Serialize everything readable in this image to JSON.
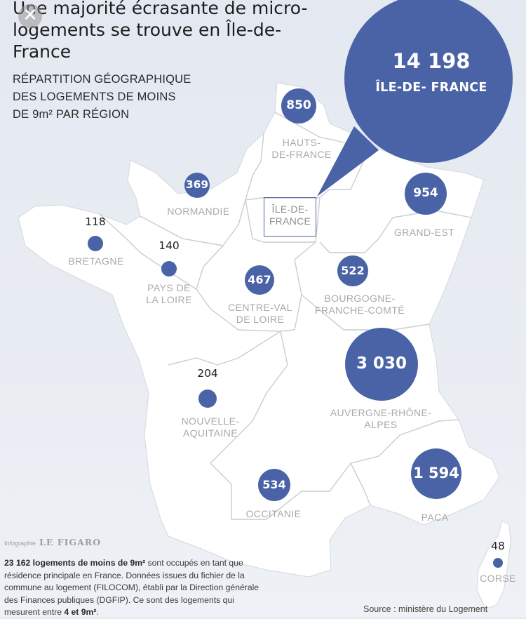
{
  "title": "Une majorité écrasante de micro-logements se trouve en Île-de-France",
  "subtitle_lines": [
    "RÉPARTITION GÉOGRAPHIQUE",
    "DES LOGEMENTS DE MOINS",
    "DE 9m² PAR RÉGION"
  ],
  "close_glyph": "✕",
  "regions": {
    "idf": {
      "name_lines": [
        "ÎLE-DE-",
        "FRANCE"
      ],
      "value": "14 198",
      "callout_label": "ÎLE-DE- FRANCE"
    },
    "hdf": {
      "name_lines": [
        "HAUTS-",
        "DE-FRANCE"
      ],
      "value": "850"
    },
    "norm": {
      "name_lines": [
        "NORMANDIE"
      ],
      "value": "369"
    },
    "ge": {
      "name_lines": [
        "GRAND-EST"
      ],
      "value": "954"
    },
    "bret": {
      "name_lines": [
        "BRETAGNE"
      ],
      "value": "118"
    },
    "pdl": {
      "name_lines": [
        "PAYS DE",
        "LA LOIRE"
      ],
      "value": "140"
    },
    "cvl": {
      "name_lines": [
        "CENTRE-VAL",
        "DE LOIRE"
      ],
      "value": "467"
    },
    "bfc": {
      "name_lines": [
        "BOURGOGNE-",
        "FRANCHE-COMTÉ"
      ],
      "value": "522"
    },
    "ara": {
      "name_lines": [
        "AUVERGNE-RHÔNE-",
        "ALPES"
      ],
      "value": "3 030"
    },
    "na": {
      "name_lines": [
        "NOUVELLE-",
        "AQUITAINE"
      ],
      "value": "204"
    },
    "occ": {
      "name_lines": [
        "OCCITANIE"
      ],
      "value": "534"
    },
    "paca": {
      "name_lines": [
        "PACA"
      ],
      "value": "1 594"
    },
    "corse": {
      "name_lines": [
        "CORSE"
      ],
      "value": "48"
    }
  },
  "credit": {
    "prefix": "Infographie",
    "brand": "LE FIGARO"
  },
  "footnote": {
    "bold1": "23 162 logements de moins de 9m²",
    "text1": " sont occupés en tant que résidence principale en France. Données issues du fichier de la commune au logement (FILOCOM), établi par la Direction générale des Finances publiques (DGFIP). Ce sont des logements qui mesurent entre ",
    "bold2": "4 et 9m²",
    "text2": "."
  },
  "source": "Source : ministère du Logement",
  "colors": {
    "bubble": "#4963a6",
    "land": "#ffffff",
    "border": "#c9ccd2",
    "sea": "#e6ebf2"
  }
}
